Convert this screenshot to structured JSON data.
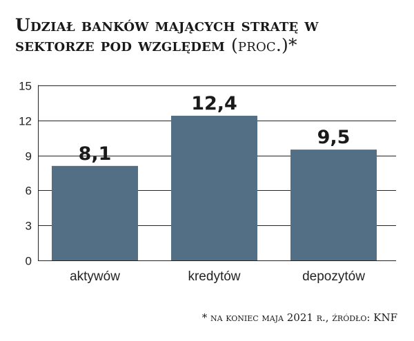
{
  "chart_data": {
    "type": "bar",
    "title_main": "Udział banków mających stratę w sektorze pod względem",
    "title_unit": "(proc.)*",
    "categories": [
      "aktywów",
      "kredytów",
      "depozytów"
    ],
    "values": [
      8.1,
      12.4,
      9.5
    ],
    "value_labels": [
      "8,1",
      "12,4",
      "9,5"
    ],
    "ylim": [
      0,
      15
    ],
    "yticks": [
      0,
      3,
      6,
      9,
      12,
      15
    ],
    "grid": true,
    "xlabel": "",
    "ylabel": ""
  },
  "footnote": "* na koniec maja 2021 r., źródło: KNF",
  "colors": {
    "bar": "#536f86",
    "grid": "#222222",
    "text": "#1a1a1a"
  }
}
